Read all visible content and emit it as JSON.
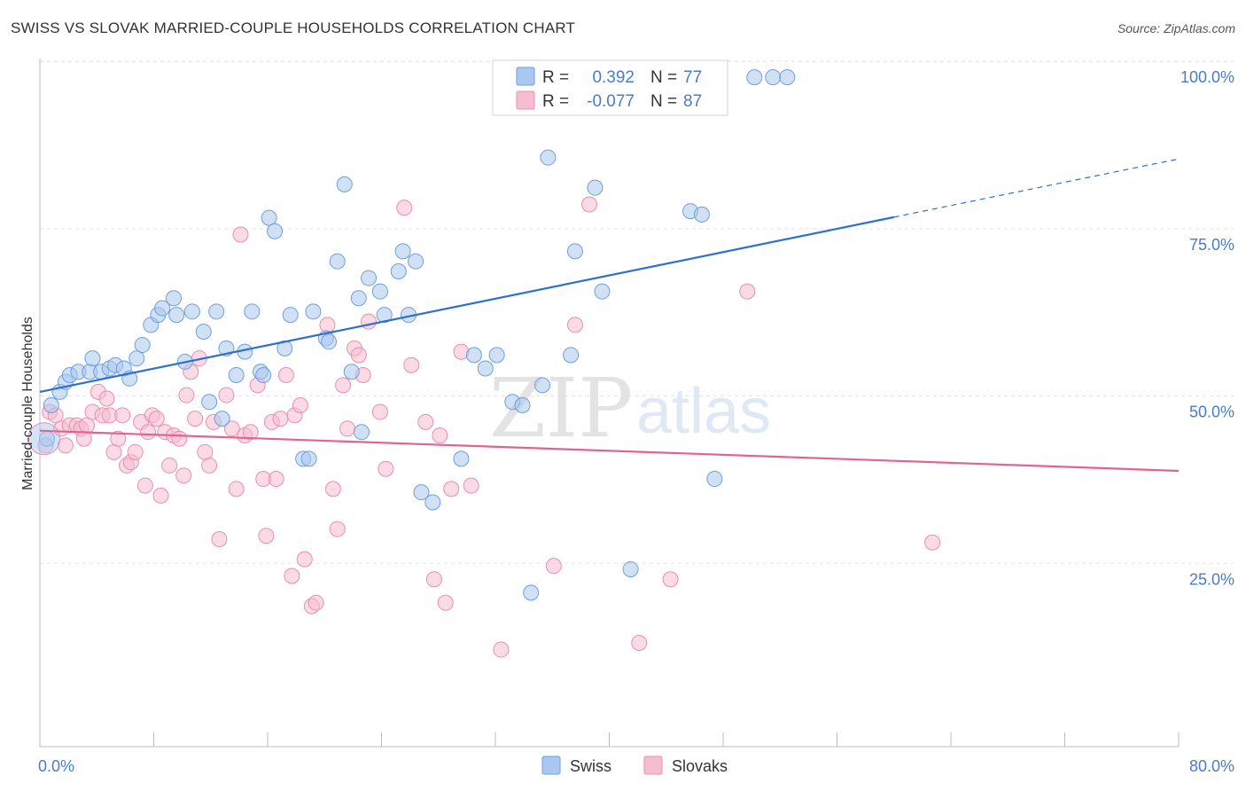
{
  "title": "SWISS VS SLOVAK MARRIED-COUPLE HOUSEHOLDS CORRELATION CHART",
  "source": "Source: ZipAtlas.com",
  "watermark": {
    "zip": "ZIP",
    "atlas": "atlas"
  },
  "colors": {
    "swiss_fill": "#a9c8ef",
    "swiss_stroke": "#6f9fdc",
    "swiss_line": "#2f6fce",
    "slovaks_fill": "#f6bccf",
    "slovaks_stroke": "#e890ad",
    "slovaks_line": "#e0648f",
    "tick_text": "#4a7cc9",
    "grid": "#e4e4e4"
  },
  "legend": {
    "rows": [
      {
        "r_label": "R =",
        "r_value": "0.392",
        "n_label": "N =",
        "n_value": "77"
      },
      {
        "r_label": "R =",
        "r_value": "-0.077",
        "n_label": "N =",
        "n_value": "87"
      }
    ]
  },
  "bottom_legend": [
    "Swiss",
    "Slovaks"
  ],
  "chart_data": {
    "type": "scatter",
    "title": "SWISS VS SLOVAK MARRIED-COUPLE HOUSEHOLDS CORRELATION CHART",
    "xlabel": "",
    "ylabel": "Married-couple Households",
    "xlim": [
      0,
      80
    ],
    "ylim": [
      0,
      102
    ],
    "x_tick_labels": [
      "0.0%",
      "80.0%"
    ],
    "y_ticks": [
      25,
      50,
      75,
      100
    ],
    "y_tick_labels": [
      "25.0%",
      "50.0%",
      "75.0%",
      "100.0%"
    ],
    "grid": true,
    "legend_position": "top-center",
    "series": [
      {
        "name": "Swiss",
        "r": 0.392,
        "n": 77,
        "trend": {
          "x0": 0,
          "y0": 53.0,
          "x1": 60,
          "y1": 79.1,
          "dashed_to_x": 80,
          "dashed_to_y": 87.8
        },
        "points": [
          [
            0.5,
            46
          ],
          [
            0.8,
            51
          ],
          [
            1.4,
            53
          ],
          [
            1.8,
            54.5
          ],
          [
            2.1,
            55.5
          ],
          [
            2.7,
            56
          ],
          [
            3.5,
            56
          ],
          [
            3.7,
            58
          ],
          [
            4.3,
            56
          ],
          [
            4.9,
            56.5
          ],
          [
            5.3,
            57
          ],
          [
            5.9,
            56.5
          ],
          [
            6.3,
            55
          ],
          [
            6.8,
            58
          ],
          [
            7.2,
            60
          ],
          [
            7.8,
            63
          ],
          [
            8.3,
            64.5
          ],
          [
            8.6,
            65.5
          ],
          [
            9.4,
            67
          ],
          [
            9.6,
            64.5
          ],
          [
            10.2,
            57.5
          ],
          [
            10.7,
            65
          ],
          [
            11.5,
            62
          ],
          [
            11.9,
            51.5
          ],
          [
            12.4,
            65
          ],
          [
            12.8,
            49
          ],
          [
            13.1,
            59.5
          ],
          [
            13.8,
            55.5
          ],
          [
            14.4,
            59
          ],
          [
            14.9,
            65
          ],
          [
            15.5,
            56
          ],
          [
            15.7,
            55.5
          ],
          [
            16.1,
            79
          ],
          [
            16.5,
            77
          ],
          [
            17.2,
            59.5
          ],
          [
            17.6,
            64.5
          ],
          [
            18.5,
            43
          ],
          [
            18.9,
            43
          ],
          [
            19.2,
            65
          ],
          [
            20.1,
            61
          ],
          [
            20.3,
            60.5
          ],
          [
            20.9,
            72.5
          ],
          [
            21.4,
            84
          ],
          [
            21.9,
            56
          ],
          [
            22.4,
            67
          ],
          [
            22.6,
            47
          ],
          [
            23.1,
            70
          ],
          [
            23.9,
            68
          ],
          [
            24.2,
            64.5
          ],
          [
            25.2,
            71
          ],
          [
            25.5,
            74
          ],
          [
            25.9,
            64.5
          ],
          [
            26.4,
            72.5
          ],
          [
            26.8,
            38
          ],
          [
            27.6,
            36.5
          ],
          [
            29.6,
            43
          ],
          [
            30.5,
            58.5
          ],
          [
            31.3,
            56.5
          ],
          [
            32.1,
            58.5
          ],
          [
            33.2,
            51.5
          ],
          [
            33.9,
            51
          ],
          [
            34.5,
            23
          ],
          [
            35.3,
            54
          ],
          [
            35.7,
            88
          ],
          [
            37.3,
            58.5
          ],
          [
            37.6,
            74
          ],
          [
            39,
            83.5
          ],
          [
            39.5,
            68
          ],
          [
            41.5,
            26.5
          ],
          [
            42.5,
            100
          ],
          [
            44.5,
            100
          ],
          [
            45.7,
            80
          ],
          [
            46.5,
            79.5
          ],
          [
            47.4,
            40
          ],
          [
            50.2,
            100
          ],
          [
            51.5,
            100
          ],
          [
            52.5,
            100
          ]
        ]
      },
      {
        "name": "Slovaks",
        "r": -0.077,
        "n": 87,
        "trend": {
          "x0": 0,
          "y0": 47.2,
          "x1": 80,
          "y1": 41.2
        },
        "points": [
          [
            0.4,
            45
          ],
          [
            0.7,
            50
          ],
          [
            1.1,
            49.5
          ],
          [
            1.5,
            47.5
          ],
          [
            1.8,
            45
          ],
          [
            2.1,
            48
          ],
          [
            2.6,
            48
          ],
          [
            2.9,
            47.5
          ],
          [
            3.1,
            46
          ],
          [
            3.3,
            48
          ],
          [
            3.7,
            50
          ],
          [
            4.1,
            53
          ],
          [
            4.4,
            49.5
          ],
          [
            4.7,
            52
          ],
          [
            4.9,
            49.5
          ],
          [
            5.2,
            44
          ],
          [
            5.5,
            46
          ],
          [
            5.8,
            49.5
          ],
          [
            6.1,
            42
          ],
          [
            6.4,
            42.5
          ],
          [
            6.7,
            44
          ],
          [
            7.1,
            48.5
          ],
          [
            7.4,
            39
          ],
          [
            7.6,
            47
          ],
          [
            7.9,
            49.5
          ],
          [
            8.2,
            49
          ],
          [
            8.5,
            37.5
          ],
          [
            8.8,
            47
          ],
          [
            9.1,
            42
          ],
          [
            9.4,
            46.5
          ],
          [
            9.8,
            46
          ],
          [
            10.1,
            40.5
          ],
          [
            10.3,
            52.5
          ],
          [
            10.6,
            56
          ],
          [
            10.9,
            49
          ],
          [
            11.2,
            58
          ],
          [
            11.6,
            44
          ],
          [
            11.9,
            42
          ],
          [
            12.2,
            48.5
          ],
          [
            12.6,
            31
          ],
          [
            13.1,
            52.5
          ],
          [
            13.5,
            47.5
          ],
          [
            13.8,
            38.5
          ],
          [
            14.1,
            76.5
          ],
          [
            14.4,
            46.5
          ],
          [
            14.8,
            47
          ],
          [
            15.3,
            54
          ],
          [
            15.7,
            40
          ],
          [
            15.9,
            31.5
          ],
          [
            16.3,
            48.5
          ],
          [
            16.6,
            40
          ],
          [
            16.9,
            49
          ],
          [
            17.3,
            55.5
          ],
          [
            17.7,
            25.5
          ],
          [
            17.9,
            49.5
          ],
          [
            18.3,
            51
          ],
          [
            18.6,
            28
          ],
          [
            19.1,
            21
          ],
          [
            19.4,
            21.5
          ],
          [
            20.2,
            63
          ],
          [
            20.6,
            38.5
          ],
          [
            20.9,
            32.5
          ],
          [
            21.3,
            54
          ],
          [
            21.6,
            47.5
          ],
          [
            22.1,
            59.5
          ],
          [
            22.4,
            58.5
          ],
          [
            22.7,
            55.5
          ],
          [
            23.1,
            63.5
          ],
          [
            23.9,
            50
          ],
          [
            24.3,
            41.5
          ],
          [
            25.6,
            80.5
          ],
          [
            26.1,
            57
          ],
          [
            27.1,
            48.5
          ],
          [
            27.7,
            25
          ],
          [
            28.1,
            46.5
          ],
          [
            28.5,
            21.5
          ],
          [
            28.9,
            38.5
          ],
          [
            29.6,
            59
          ],
          [
            30.3,
            39
          ],
          [
            32.4,
            14.5
          ],
          [
            36.1,
            27
          ],
          [
            37.6,
            63
          ],
          [
            38.6,
            81
          ],
          [
            42.1,
            15.5
          ],
          [
            44.3,
            25
          ],
          [
            49.7,
            68
          ],
          [
            62.7,
            30.5
          ]
        ]
      }
    ]
  }
}
